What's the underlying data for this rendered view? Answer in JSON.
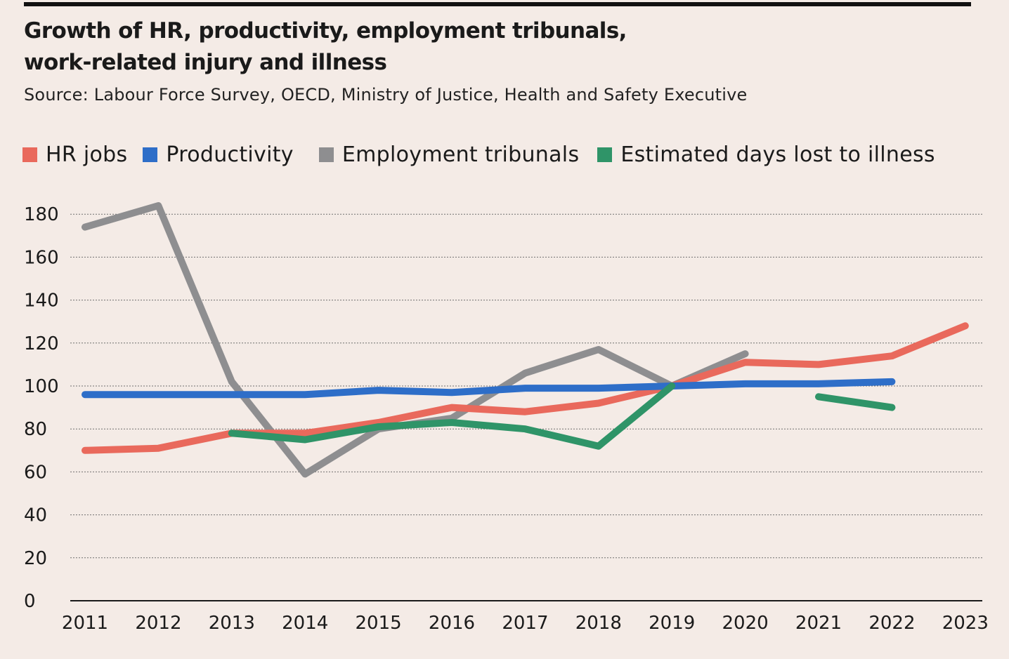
{
  "chart_data": {
    "type": "line",
    "title_lines": [
      "Growth of HR, productivity, employment tribunals,",
      "work-related injury and illness"
    ],
    "subtitle": "Source: Labour Force Survey, OECD, Ministry of Justice, Health and Safety Executive",
    "xlabel": "",
    "ylabel": "",
    "x": [
      "2011",
      "2012",
      "2013",
      "2014",
      "2015",
      "2016",
      "2017",
      "2018",
      "2019",
      "2020",
      "2021",
      "2022",
      "2023"
    ],
    "yticks": [
      "0",
      "20",
      "40",
      "60",
      "80",
      "100",
      "120",
      "140",
      "160",
      "180"
    ],
    "ylim": [
      0,
      180
    ],
    "grid": "horizontal dotted",
    "legend_position": "top",
    "series": [
      {
        "name": "HR jobs",
        "color": "#e9695c",
        "values": [
          70,
          71,
          78,
          78,
          83,
          90,
          88,
          92,
          100,
          111,
          110,
          114,
          128
        ]
      },
      {
        "name": "Productivity",
        "color": "#2e6ec8",
        "values": [
          96,
          96,
          96,
          96,
          98,
          97,
          99,
          99,
          100,
          101,
          101,
          102,
          null
        ]
      },
      {
        "name": "Employment tribunals",
        "color": "#8e8e90",
        "values": [
          174,
          184,
          102,
          59,
          80,
          85,
          106,
          117,
          100,
          115,
          null,
          null,
          null
        ]
      },
      {
        "name": "Estimated days lost to illness",
        "color": "#2f9468",
        "values": [
          null,
          null,
          78,
          75,
          81,
          83,
          80,
          72,
          100,
          null,
          95,
          90,
          null
        ]
      }
    ]
  }
}
